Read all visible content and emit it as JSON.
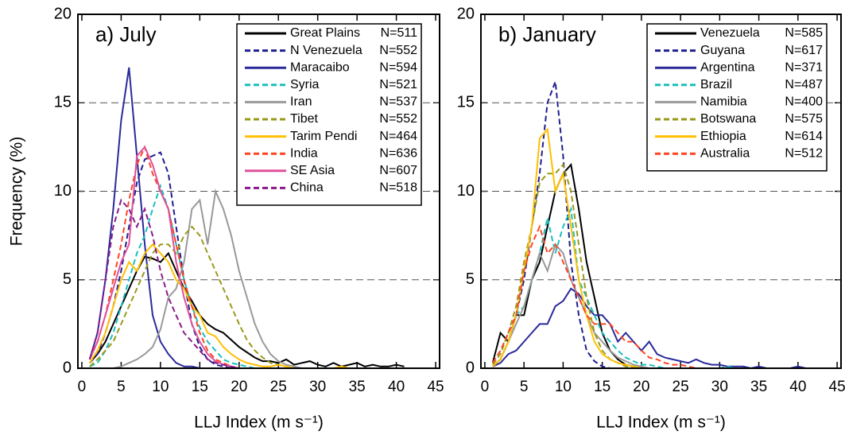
{
  "chart_data": [
    {
      "type": "line",
      "title": "a) July",
      "xlabel": "LLJ Index (m s⁻¹)",
      "ylabel": "Frequency (%)",
      "xlim": [
        -0.5,
        45.5
      ],
      "ylim": [
        0,
        20
      ],
      "xticks": [
        0,
        5,
        10,
        15,
        20,
        25,
        30,
        35,
        40,
        45
      ],
      "yticks": [
        0,
        5,
        10,
        15,
        20
      ],
      "grid": true,
      "x": [
        1,
        2,
        3,
        4,
        5,
        6,
        7,
        8,
        9,
        10,
        11,
        12,
        13,
        14,
        15,
        16,
        17,
        18,
        19,
        20,
        21,
        22,
        23,
        24,
        25,
        26,
        27,
        28,
        29,
        30,
        31,
        32,
        33,
        34,
        35,
        36,
        37,
        38,
        39,
        40,
        41
      ],
      "series": [
        {
          "name": "Great Plains",
          "label": "N=511",
          "color": "#000000",
          "dash": false,
          "values": [
            0.3,
            0.8,
            1.5,
            2.5,
            3.5,
            4.5,
            5.5,
            6.3,
            6.2,
            6,
            6.5,
            5.5,
            4.5,
            3.8,
            3,
            2.5,
            2.2,
            2,
            1.6,
            1.2,
            0.9,
            0.6,
            0.4,
            0.4,
            0.3,
            0.5,
            0.2,
            0.3,
            0.4,
            0.2,
            0.1,
            0.3,
            0.1,
            0.2,
            0.3,
            0.1,
            0.2,
            0.1,
            0.1,
            0.2,
            0.1
          ]
        },
        {
          "name": "N Venezuela",
          "label": "N=552",
          "color": "#1f1f8f",
          "dash": true,
          "values": [
            0.3,
            0.8,
            2,
            3.5,
            5.5,
            8,
            10.5,
            11.8,
            12,
            12.2,
            11,
            8,
            5,
            2.5,
            1.2,
            0.5,
            0.2,
            0.1,
            0,
            0,
            0,
            0,
            0,
            0,
            0,
            0,
            0,
            0,
            0,
            0,
            0,
            0,
            0,
            0,
            0,
            0,
            0,
            0,
            0,
            0,
            0
          ]
        },
        {
          "name": "Maracaibo",
          "label": "N=594",
          "color": "#2a2a9a",
          "dash": false,
          "values": [
            0.5,
            2,
            5,
            9,
            14,
            17,
            12,
            7,
            3,
            1.5,
            0.8,
            0.3,
            0.1,
            0.1,
            0,
            0,
            0,
            0,
            0,
            0,
            0,
            0,
            0,
            0,
            0,
            0,
            0,
            0,
            0,
            0,
            0,
            0,
            0,
            0,
            0,
            0,
            0,
            0,
            0,
            0,
            0
          ]
        },
        {
          "name": "Syria",
          "label": "N=521",
          "color": "#1abfbf",
          "dash": true,
          "values": [
            0.1,
            0.3,
            1,
            2,
            3.5,
            5,
            6.5,
            7.5,
            9,
            10.3,
            9,
            7,
            5,
            3.5,
            2.3,
            1.5,
            1,
            0.5,
            0.3,
            0.2,
            0.1,
            0,
            0,
            0,
            0,
            0,
            0,
            0,
            0,
            0,
            0,
            0,
            0,
            0,
            0,
            0,
            0,
            0,
            0,
            0,
            0
          ]
        },
        {
          "name": "Iran",
          "label": "N=537",
          "color": "#999999",
          "dash": false,
          "values": [
            0,
            0,
            0,
            0,
            0.1,
            0.3,
            0.5,
            0.8,
            1.2,
            2.2,
            4,
            4.5,
            6,
            9,
            9.5,
            7,
            10,
            9,
            7.5,
            5.5,
            4,
            2.5,
            1.5,
            0.8,
            0.4,
            0.2,
            0.1,
            0,
            0,
            0,
            0,
            0,
            0,
            0,
            0,
            0,
            0,
            0,
            0,
            0,
            0
          ]
        },
        {
          "name": "Tibet",
          "label": "N=552",
          "color": "#9a9a1a",
          "dash": true,
          "values": [
            0.1,
            0.5,
            1,
            1.5,
            2.5,
            3.5,
            4.5,
            5.5,
            6.5,
            7,
            7,
            6.5,
            7.5,
            8,
            7.5,
            6.5,
            5.5,
            4.5,
            3.5,
            2.5,
            1.6,
            1,
            0.6,
            0.3,
            0.2,
            0.1,
            0,
            0,
            0,
            0,
            0,
            0,
            0,
            0,
            0,
            0,
            0,
            0,
            0,
            0,
            0
          ]
        },
        {
          "name": "Tarim Pendi",
          "label": "N=464",
          "color": "#ffc000",
          "dash": false,
          "values": [
            0.3,
            1,
            2,
            3.5,
            5,
            6,
            5.5,
            6.5,
            7,
            6.5,
            6,
            5,
            4.5,
            3.5,
            3,
            2,
            1.8,
            1.2,
            0.8,
            0.5,
            0.3,
            0.2,
            0.1,
            0.1,
            0.2,
            0.1,
            0,
            0,
            0,
            0,
            0,
            0,
            0.1,
            0,
            0,
            0,
            0,
            0,
            0,
            0,
            0
          ]
        },
        {
          "name": "India",
          "label": "N=636",
          "color": "#ff4422",
          "dash": true,
          "values": [
            0.5,
            1.5,
            3,
            5,
            7,
            9.5,
            11.5,
            12.5,
            11,
            10,
            9,
            7,
            5,
            3.5,
            2,
            1,
            0.5,
            0.3,
            0.1,
            0,
            0,
            0,
            0,
            0,
            0,
            0,
            0,
            0,
            0,
            0,
            0,
            0,
            0,
            0,
            0,
            0,
            0,
            0,
            0,
            0,
            0
          ]
        },
        {
          "name": "SE Asia",
          "label": "N=607",
          "color": "#e0509a",
          "dash": false,
          "values": [
            0.5,
            1.5,
            3,
            4.5,
            6,
            7,
            12,
            12.5,
            11.5,
            10,
            9,
            6,
            4,
            2.5,
            1.5,
            0.8,
            0.4,
            0.2,
            0.1,
            0,
            0,
            0,
            0,
            0,
            0,
            0,
            0,
            0,
            0,
            0,
            0,
            0,
            0,
            0,
            0,
            0,
            0,
            0,
            0,
            0,
            0
          ]
        },
        {
          "name": "China",
          "label": "N=518",
          "color": "#8b1a8b",
          "dash": true,
          "values": [
            0.5,
            2,
            5,
            8,
            9.5,
            9,
            8,
            9,
            7.5,
            5.5,
            4,
            3,
            2,
            1.5,
            1,
            0.5,
            0.3,
            0.2,
            0.1,
            0,
            0,
            0,
            0,
            0,
            0,
            0,
            0,
            0,
            0,
            0,
            0,
            0,
            0,
            0,
            0,
            0,
            0,
            0,
            0,
            0,
            0
          ]
        }
      ]
    },
    {
      "type": "line",
      "title": "b) January",
      "xlabel": "LLJ Index (m s⁻¹)",
      "xlim": [
        -0.5,
        45.5
      ],
      "ylim": [
        0,
        20
      ],
      "xticks": [
        0,
        5,
        10,
        15,
        20,
        25,
        30,
        35,
        40,
        45
      ],
      "yticks": [
        0,
        5,
        10,
        15,
        20
      ],
      "grid": true,
      "x": [
        1,
        2,
        3,
        4,
        5,
        6,
        7,
        8,
        9,
        10,
        11,
        12,
        13,
        14,
        15,
        16,
        17,
        18,
        19,
        20,
        21,
        22,
        23,
        24,
        25,
        26,
        27,
        28,
        29,
        30,
        31,
        32,
        33,
        34,
        35,
        36,
        37,
        38,
        39,
        40,
        41
      ],
      "series": [
        {
          "name": "Venezuela",
          "label": "N=585",
          "color": "#000000",
          "dash": false,
          "values": [
            0.3,
            2,
            1.5,
            3,
            3,
            5,
            6,
            8,
            10,
            11,
            11.5,
            9,
            6,
            4,
            2,
            1,
            0.5,
            0.2,
            0.1,
            0,
            0,
            0,
            0,
            0,
            0,
            0,
            0,
            0,
            0,
            0,
            0,
            0,
            0,
            0,
            0,
            0,
            0,
            0,
            0,
            0,
            0
          ]
        },
        {
          "name": "Guyana",
          "label": "N=617",
          "color": "#1f1f8f",
          "dash": true,
          "values": [
            0.1,
            0.5,
            1.5,
            3,
            5,
            8,
            11,
            15,
            16.2,
            12,
            6,
            3,
            1,
            0.4,
            0.1,
            0,
            0,
            0,
            0,
            0,
            0,
            0,
            0,
            0,
            0,
            0,
            0,
            0,
            0,
            0,
            0,
            0,
            0,
            0,
            0,
            0,
            0,
            0,
            0,
            0,
            0
          ]
        },
        {
          "name": "Argentina",
          "label": "N=371",
          "color": "#2a2a9a",
          "dash": false,
          "values": [
            0.1,
            0.3,
            0.8,
            1,
            1.5,
            2,
            2.5,
            2.5,
            3.5,
            3.8,
            4.5,
            4.2,
            3.5,
            3,
            3,
            2.5,
            1.5,
            2,
            1.5,
            1,
            1.5,
            0.8,
            0.6,
            0.5,
            0.4,
            0.3,
            0.5,
            0.3,
            0.2,
            0.2,
            0.1,
            0.1,
            0.1,
            0,
            0.1,
            0,
            0,
            0,
            0,
            0.1,
            0
          ]
        },
        {
          "name": "Brazil",
          "label": "N=487",
          "color": "#1abfbf",
          "dash": true,
          "values": [
            0.3,
            1,
            2,
            3,
            3.5,
            5,
            6.5,
            8.5,
            6.5,
            8,
            9,
            5,
            4,
            3,
            2,
            1.5,
            1,
            0.6,
            0.4,
            0.2,
            0.2,
            0.1,
            0,
            0,
            0,
            0,
            0,
            0,
            0,
            0,
            0.1,
            0,
            0,
            0,
            0,
            0,
            0,
            0,
            0,
            0,
            0
          ]
        },
        {
          "name": "Namibia",
          "label": "N=400",
          "color": "#999999",
          "dash": false,
          "values": [
            0.1,
            0.5,
            1.5,
            2.5,
            3.5,
            5,
            6.5,
            5.5,
            7,
            6.5,
            5,
            4,
            3,
            2,
            1.5,
            1,
            0.6,
            0.4,
            0.2,
            0.1,
            0,
            0,
            0,
            0,
            0,
            0,
            0,
            0,
            0,
            0,
            0,
            0,
            0,
            0,
            0,
            0,
            0,
            0,
            0,
            0,
            0
          ]
        },
        {
          "name": "Botswana",
          "label": "N=575",
          "color": "#9a9a1a",
          "dash": true,
          "values": [
            0.2,
            0.8,
            2,
            3.5,
            6,
            8,
            10.5,
            11,
            11,
            11.5,
            10,
            7,
            4,
            2,
            1,
            0.5,
            0.3,
            0.1,
            0,
            0,
            0,
            0,
            0,
            0,
            0,
            0,
            0,
            0,
            0,
            0,
            0,
            0,
            0,
            0,
            0,
            0,
            0,
            0,
            0,
            0,
            0
          ]
        },
        {
          "name": "Ethiopia",
          "label": "N=614",
          "color": "#ffc000",
          "dash": false,
          "values": [
            0.1,
            0.5,
            1.5,
            3,
            5.5,
            8,
            13,
            13.5,
            10,
            11,
            8,
            5,
            3,
            1.5,
            0.8,
            0.5,
            0.3,
            0.2,
            0.1,
            0,
            0,
            0,
            0,
            0,
            0,
            0,
            0,
            0,
            0,
            0,
            0,
            0,
            0,
            0,
            0,
            0,
            0,
            0,
            0,
            0,
            0
          ]
        },
        {
          "name": "Australia",
          "label": "N=512",
          "color": "#ff4422",
          "dash": true,
          "values": [
            0.3,
            1,
            2,
            3,
            5.5,
            7,
            8,
            6.5,
            7,
            6,
            5,
            4,
            3,
            2.5,
            2.5,
            2.5,
            2,
            1.5,
            1.5,
            1,
            0.6,
            0.5,
            0.3,
            0.2,
            0.2,
            0.1,
            0,
            0,
            0,
            0,
            0,
            0,
            0,
            0,
            0,
            0,
            0,
            0,
            0,
            0,
            0
          ]
        }
      ]
    }
  ]
}
